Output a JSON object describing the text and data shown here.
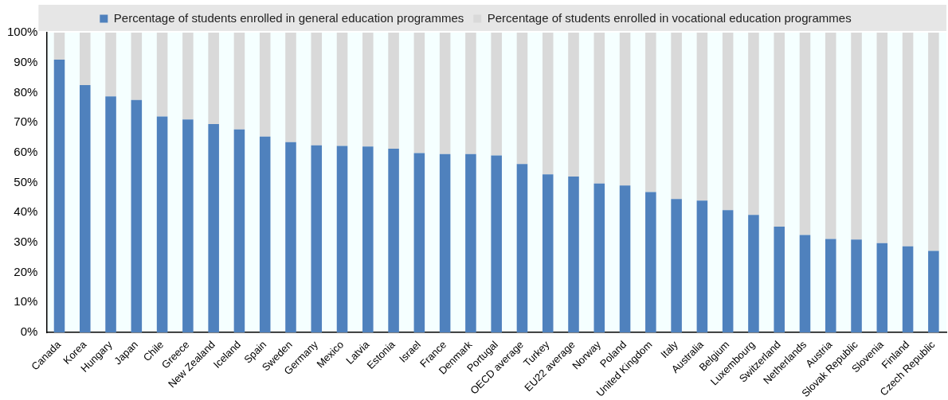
{
  "chart_data": {
    "type": "bar",
    "stacked": true,
    "legend": "top",
    "grid": false,
    "categories": [
      "Canada",
      "Korea",
      "Hungary",
      "Japan",
      "Chile",
      "Greece",
      "New Zealand",
      "Iceland",
      "Spain",
      "Sweden",
      "Germany",
      "Mexico",
      "Latvia",
      "Estonia",
      "Israel",
      "France",
      "Denmark",
      "Portugal",
      "OECD average",
      "Turkey",
      "EU22 average",
      "Norway",
      "Poland",
      "United Kingdom",
      "Italy",
      "Australia",
      "Belgium",
      "Luxembourg",
      "Switzerland",
      "Netherlands",
      "Austria",
      "Slovak Republic",
      "Slovenia",
      "Finland",
      "Czech Republic"
    ],
    "series": [
      {
        "name": "Percentage of students enrolled in general education programmes",
        "color": "#4f81bd",
        "values": [
          91,
          82.5,
          78.7,
          77.5,
          72,
          71,
          69.5,
          67.7,
          65.3,
          63.5,
          62.4,
          62.2,
          62,
          61.3,
          59.8,
          59.5,
          59.5,
          59,
          56.2,
          52.7,
          52,
          49.7,
          49,
          46.8,
          44.5,
          44,
          40.8,
          39.2,
          35.3,
          32.5,
          31.2,
          31,
          29.8,
          28.7,
          27.2
        ]
      },
      {
        "name": "Percentage of students enrolled in vocational education programmes",
        "color": "#d9d9d9",
        "values": [
          9,
          17.5,
          21.3,
          22.5,
          28,
          29,
          30.5,
          32.3,
          34.7,
          36.5,
          37.6,
          37.8,
          38,
          38.7,
          40.2,
          40.5,
          40.5,
          41,
          43.8,
          47.3,
          48,
          50.3,
          51,
          53.2,
          55.5,
          56,
          59.2,
          60.8,
          64.7,
          67.5,
          68.8,
          69,
          70.2,
          71.3,
          72.8
        ]
      }
    ],
    "ylim": [
      0,
      100
    ],
    "yticks": [
      {
        "value": 0,
        "label": "0%"
      },
      {
        "value": 10,
        "label": "10%"
      },
      {
        "value": 20,
        "label": "20%"
      },
      {
        "value": 30,
        "label": "30%"
      },
      {
        "value": 40,
        "label": "40%"
      },
      {
        "value": 50,
        "label": "50%"
      },
      {
        "value": 60,
        "label": "60%"
      },
      {
        "value": 70,
        "label": "70%"
      },
      {
        "value": 80,
        "label": "80%"
      },
      {
        "value": 90,
        "label": "90%"
      },
      {
        "value": 100,
        "label": "100%"
      }
    ]
  }
}
